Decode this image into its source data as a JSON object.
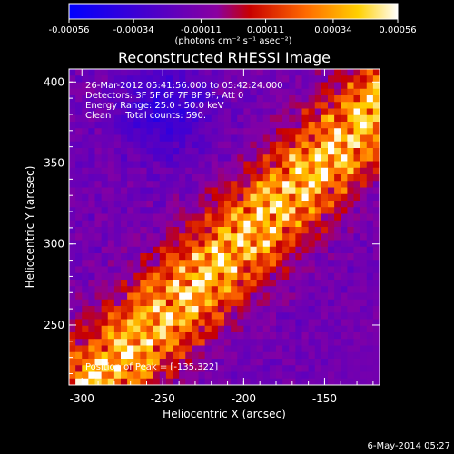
{
  "chart_data": {
    "type": "heatmap",
    "title": "Reconstructed RHESSI Image",
    "xlabel": "Heliocentric X (arcsec)",
    "ylabel": "Heliocentric Y (arcsec)",
    "xlim": [
      -308,
      -116
    ],
    "ylim": [
      213,
      408
    ],
    "x_ticks": [
      "-300",
      "-250",
      "-200",
      "-150"
    ],
    "x_tick_values": [
      -300,
      -250,
      -200,
      -150
    ],
    "y_ticks": [
      "250",
      "300",
      "350",
      "400"
    ],
    "y_tick_values": [
      250,
      300,
      350,
      400
    ],
    "colorbar": {
      "min": -0.00056,
      "max": 0.00056,
      "ticks": [
        "-0.00056",
        "-0.00034",
        "-0.00011",
        "0.00011",
        "0.00034",
        "0.00056"
      ],
      "tick_values": [
        -0.00056,
        -0.00034,
        -0.00011,
        0.00011,
        0.00034,
        0.00056
      ],
      "unit_label": "(photons cm⁻² s⁻¹ asec⁻²)",
      "colors": [
        "#0000ff",
        "#5a00c0",
        "#8a00a0",
        "#c80000",
        "#ff6a00",
        "#ffd000",
        "#ffffff"
      ]
    },
    "peak_position": [
      -135,
      322
    ],
    "grid": false
  },
  "annotations": {
    "time_range": "26-Mar-2012 05:41:56.000 to 05:42:24.000",
    "detectors": "Detectors: 3F 5F 6F 7F 8F 9F, Att 0",
    "energy_range": "Energy Range: 25.0 - 50.0 keV",
    "clean_line": "Clean     Total counts: 590.",
    "peak_label": "Position of Peak = [-135,322]"
  },
  "footer": {
    "date": "6-May-2014 05:27"
  }
}
